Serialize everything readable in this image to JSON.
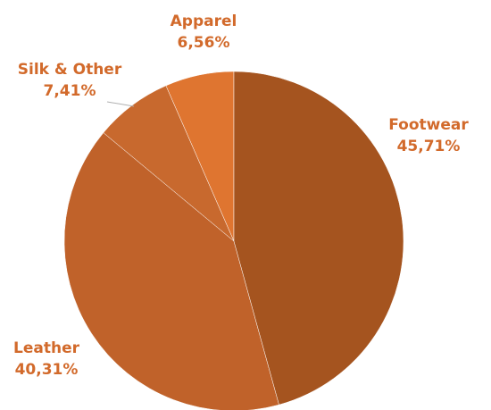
{
  "chart_data": {
    "type": "pie",
    "categories": [
      "Footwear",
      "Leather",
      "Silk & Other",
      "Apparel"
    ],
    "values": [
      45.71,
      40.31,
      7.41,
      6.56
    ],
    "value_labels": [
      "45,71%",
      "40,31%",
      "7,41%",
      "6,56%"
    ],
    "colors": [
      "#a5541f",
      "#c0622a",
      "#c8692e",
      "#df7530"
    ]
  }
}
